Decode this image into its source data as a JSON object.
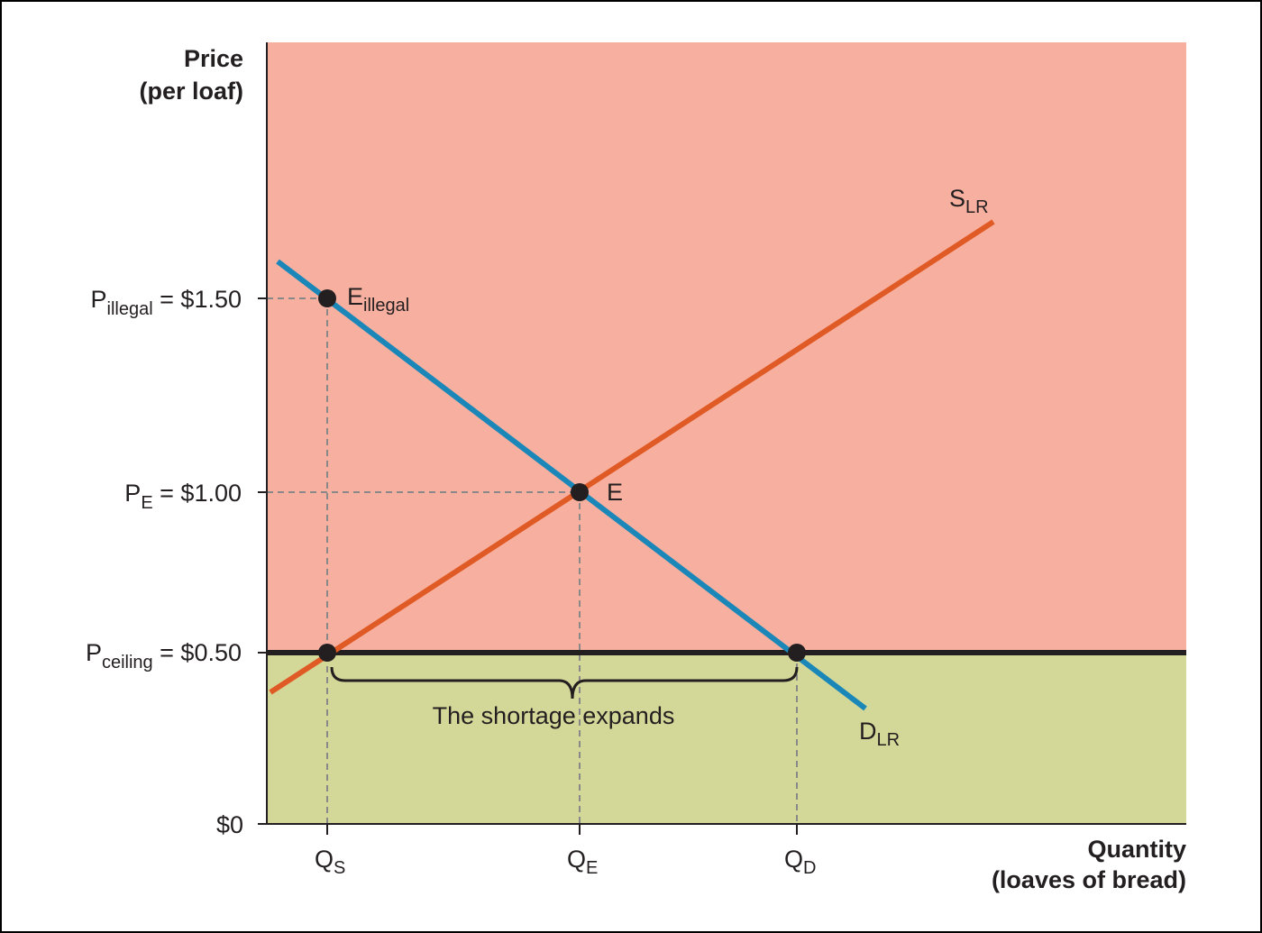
{
  "y_axis": {
    "title": [
      "Price",
      "(per loaf)"
    ],
    "ticks": [
      {
        "symbol": "P",
        "subscript": "illegal",
        "text": " = $1.50"
      },
      {
        "symbol": "P",
        "subscript": "E",
        "text": " = $1.00"
      },
      {
        "symbol": "P",
        "subscript": "ceiling",
        "text": " = $0.50"
      },
      {
        "text": "$0"
      }
    ]
  },
  "x_axis": {
    "title": [
      "Quantity",
      "(loaves of bread)"
    ],
    "ticks": [
      {
        "symbol": "Q",
        "subscript": "S"
      },
      {
        "symbol": "Q",
        "subscript": "E"
      },
      {
        "symbol": "Q",
        "subscript": "D"
      }
    ]
  },
  "curves": [
    {
      "symbol": "S",
      "subscript": "LR"
    },
    {
      "symbol": "D",
      "subscript": "LR"
    }
  ],
  "points": [
    {
      "symbol": "E",
      "subscript": "illegal"
    },
    {
      "symbol": "E"
    }
  ],
  "annotation": "The shortage expands"
}
